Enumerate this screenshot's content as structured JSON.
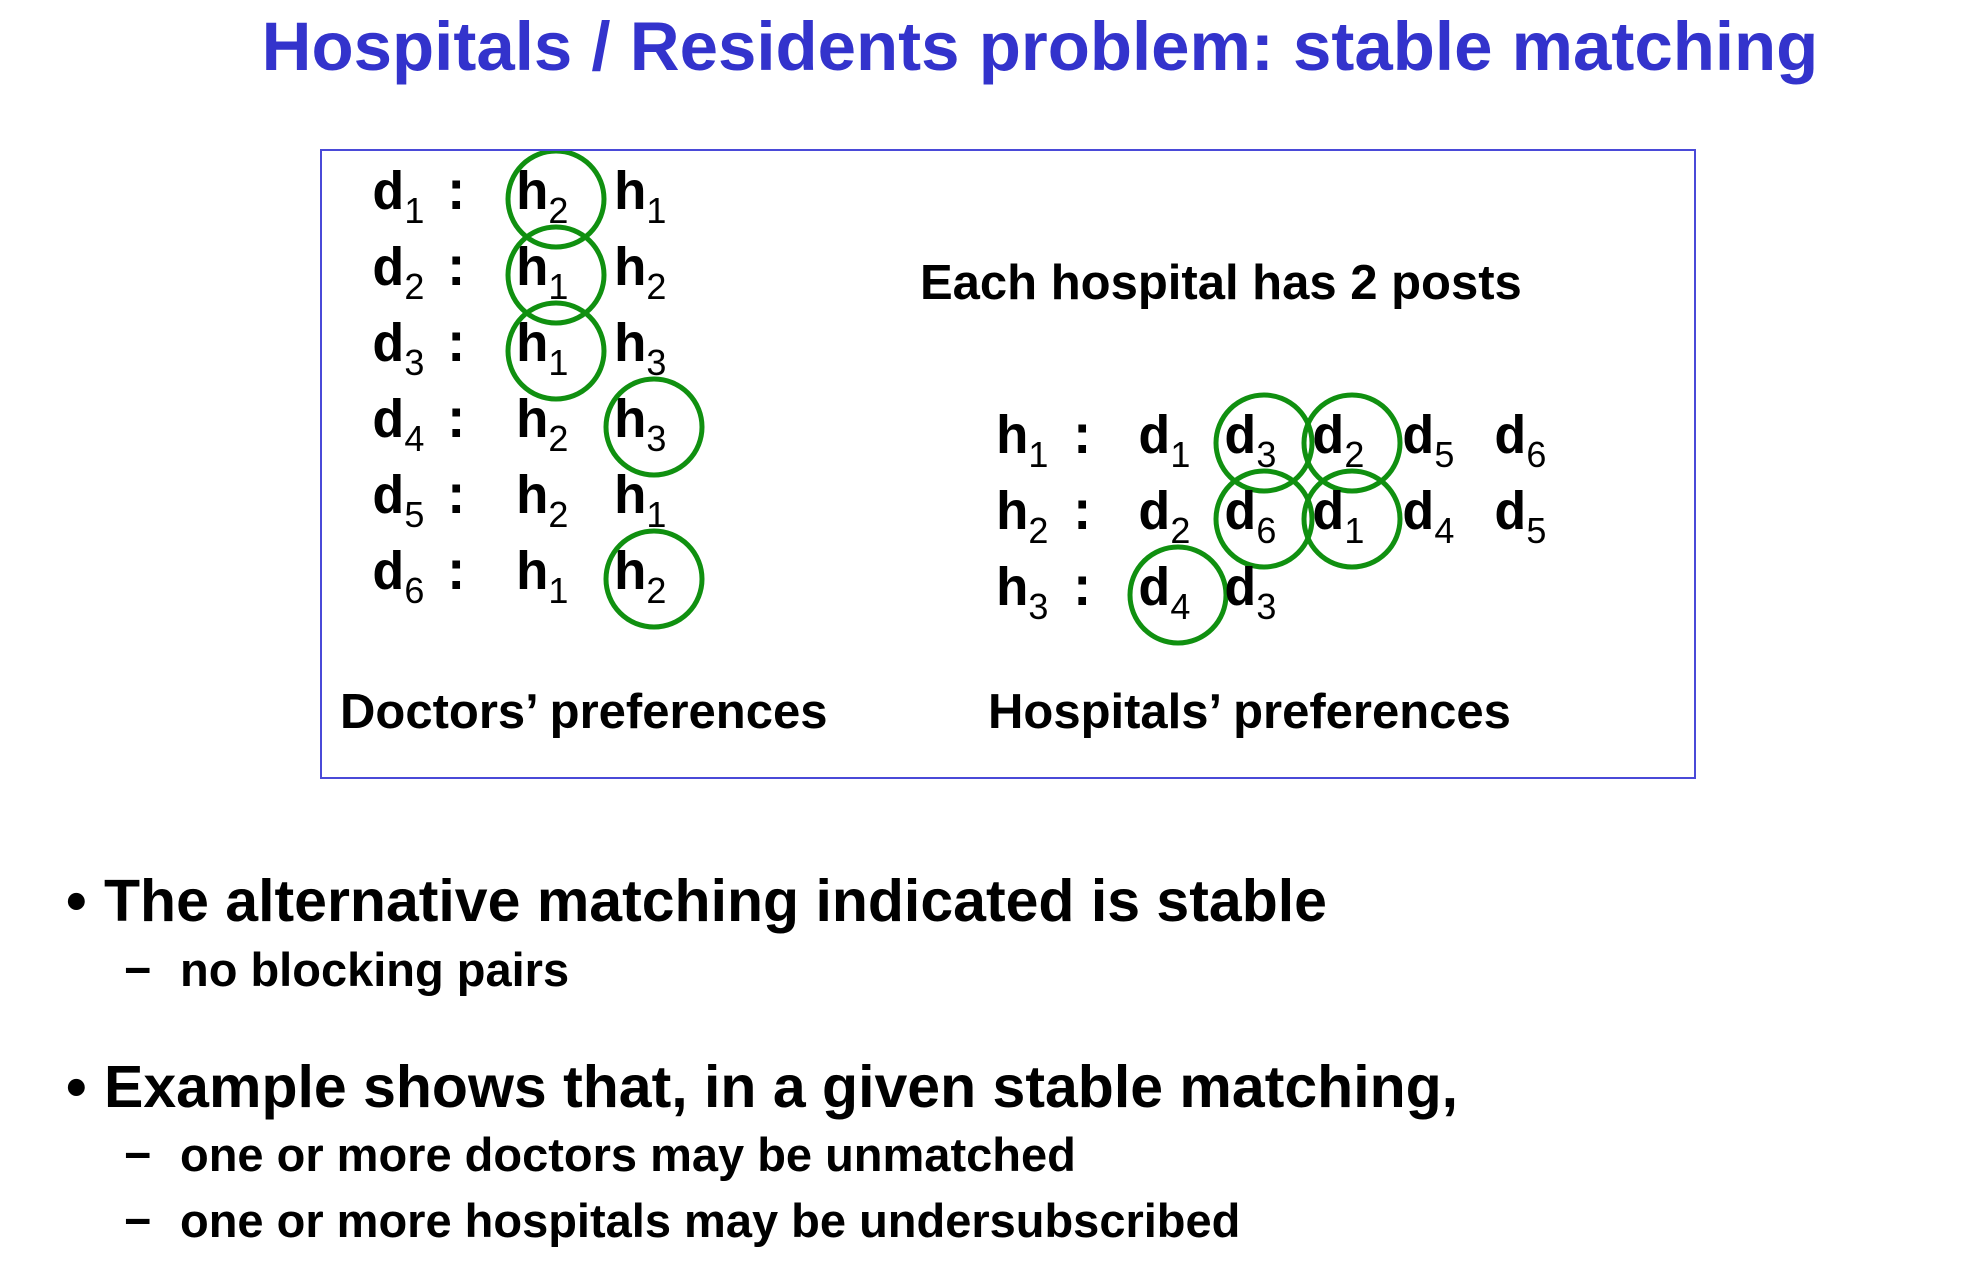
{
  "title": "Hospitals / Residents problem: stable matching",
  "colors": {
    "title": "#3333cc",
    "box_border": "#4a4ad8",
    "circle": "#109010"
  },
  "doctors": [
    {
      "doc": [
        "d",
        "1"
      ],
      "prefs": [
        [
          "h",
          "2"
        ],
        [
          "h",
          "1"
        ]
      ],
      "matched_index": 0
    },
    {
      "doc": [
        "d",
        "2"
      ],
      "prefs": [
        [
          "h",
          "1"
        ],
        [
          "h",
          "2"
        ]
      ],
      "matched_index": 0
    },
    {
      "doc": [
        "d",
        "3"
      ],
      "prefs": [
        [
          "h",
          "1"
        ],
        [
          "h",
          "3"
        ]
      ],
      "matched_index": 0
    },
    {
      "doc": [
        "d",
        "4"
      ],
      "prefs": [
        [
          "h",
          "2"
        ],
        [
          "h",
          "3"
        ]
      ],
      "matched_index": 1
    },
    {
      "doc": [
        "d",
        "5"
      ],
      "prefs": [
        [
          "h",
          "2"
        ],
        [
          "h",
          "1"
        ]
      ],
      "matched_index": null
    },
    {
      "doc": [
        "d",
        "6"
      ],
      "prefs": [
        [
          "h",
          "1"
        ],
        [
          "h",
          "2"
        ]
      ],
      "matched_index": 1
    }
  ],
  "capacity_note": "Each hospital has 2 posts",
  "hospitals": [
    {
      "hosp": [
        "h",
        "1"
      ],
      "prefs": [
        [
          "d",
          "1"
        ],
        [
          "d",
          "3"
        ],
        [
          "d",
          "2"
        ],
        [
          "d",
          "5"
        ],
        [
          "d",
          "6"
        ]
      ],
      "matched_indices": [
        1,
        2
      ]
    },
    {
      "hosp": [
        "h",
        "2"
      ],
      "prefs": [
        [
          "d",
          "2"
        ],
        [
          "d",
          "6"
        ],
        [
          "d",
          "1"
        ],
        [
          "d",
          "4"
        ],
        [
          "d",
          "5"
        ]
      ],
      "matched_indices": [
        1,
        2
      ]
    },
    {
      "hosp": [
        "h",
        "3"
      ],
      "prefs": [
        [
          "d",
          "4"
        ],
        [
          "d",
          "3"
        ]
      ],
      "matched_indices": [
        0
      ]
    }
  ],
  "doctors_label": "Doctors’ preferences",
  "hospitals_label": "Hospitals’ preferences",
  "bullets": [
    {
      "text": "The alternative matching indicated is stable",
      "subs": [
        "no blocking pairs"
      ]
    },
    {
      "text": "Example shows that, in a given stable matching,",
      "subs": [
        "one or more doctors may be unmatched",
        "one or more hospitals may be undersubscribed"
      ]
    }
  ],
  "bullet_marker": "•",
  "sub_marker": "−"
}
